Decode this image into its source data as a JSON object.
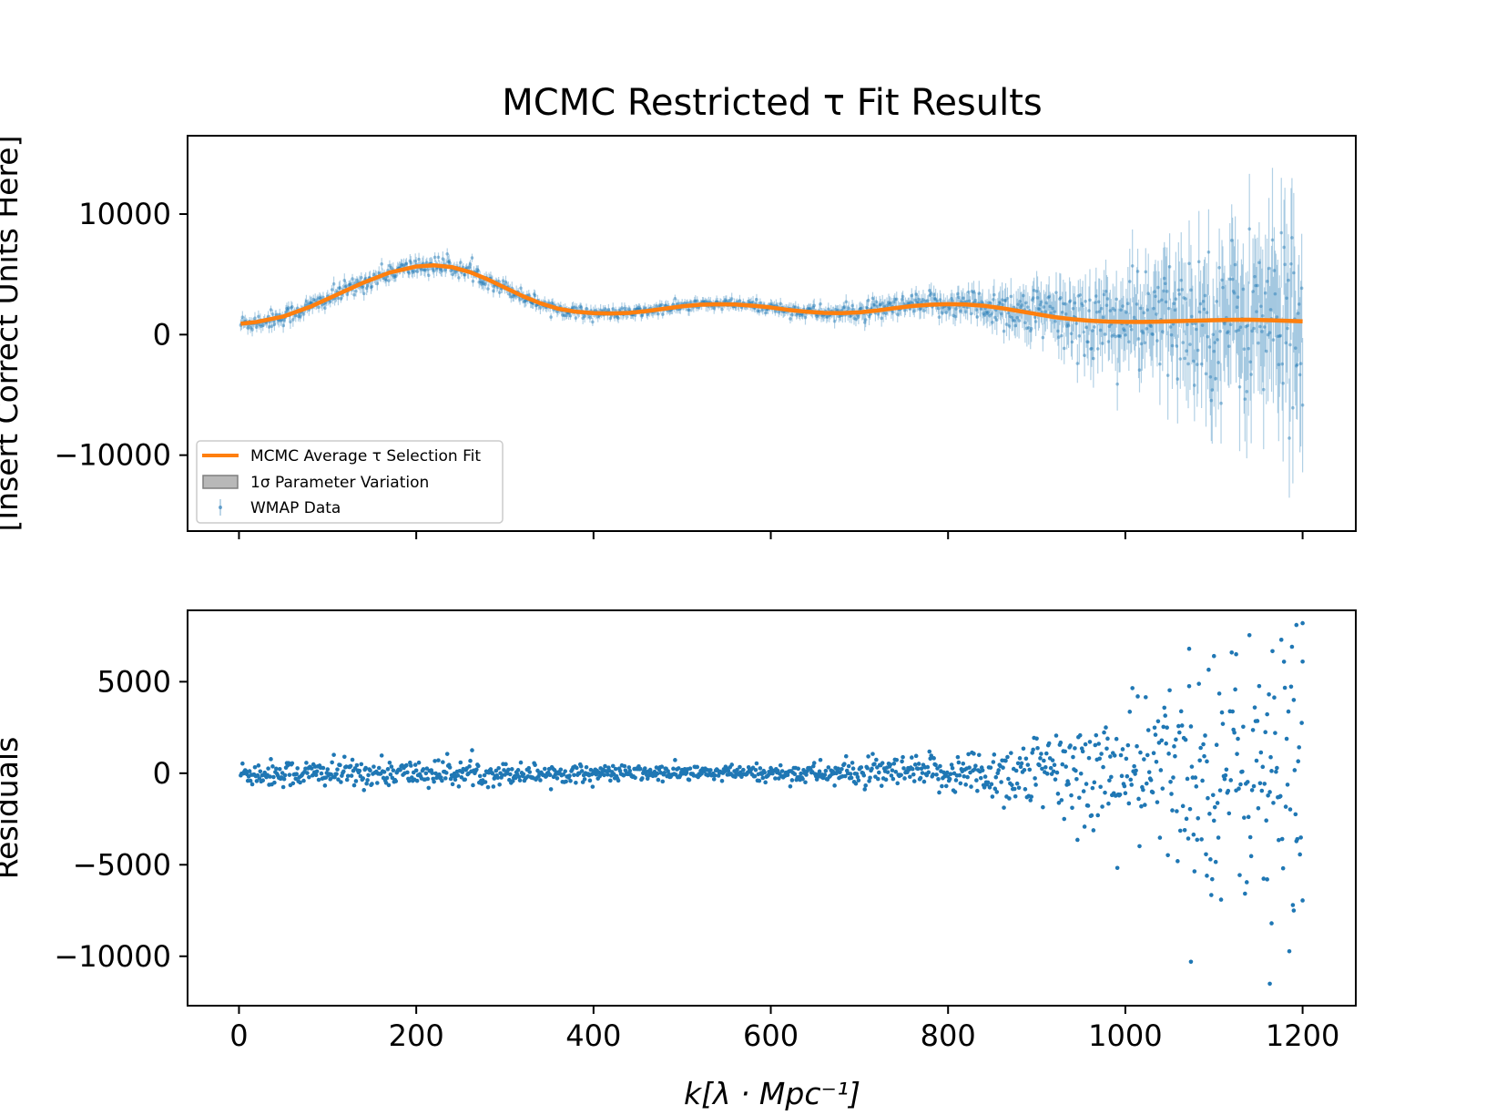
{
  "chart_data": [
    {
      "type": "scatter",
      "title": "MCMC Restricted τ Fit Results",
      "ylabel": "[Insert Correct Units Here]",
      "xlim": [
        -58,
        1260
      ],
      "ylim": [
        -16300,
        16500
      ],
      "xticks": [
        0,
        200,
        400,
        600,
        800,
        1000,
        1200
      ],
      "yticks": [
        -10000,
        0,
        10000
      ],
      "ytick_labels": [
        "−10000",
        "0",
        "10000"
      ],
      "legend": {
        "placement": "lower-left",
        "entries": [
          "MCMC Average τ Selection Fit",
          "1σ Parameter Variation",
          "WMAP Data"
        ]
      },
      "series": [
        {
          "name": "MCMC Average τ Selection Fit",
          "kind": "line",
          "color": "#ff7f0e",
          "x": [
            2,
            20,
            50,
            80,
            110,
            140,
            170,
            200,
            220,
            240,
            260,
            280,
            300,
            320,
            340,
            360,
            380,
            400,
            420,
            440,
            460,
            480,
            500,
            520,
            540,
            560,
            580,
            600,
            620,
            640,
            660,
            680,
            700,
            720,
            740,
            760,
            780,
            800,
            820,
            840,
            860,
            880,
            900,
            920,
            940,
            960,
            980,
            1000,
            1020,
            1040,
            1060,
            1080,
            1100,
            1120,
            1140,
            1160,
            1180,
            1200
          ],
          "y": [
            900,
            1050,
            1500,
            2300,
            3300,
            4300,
            5150,
            5650,
            5750,
            5600,
            5200,
            4600,
            3900,
            3200,
            2600,
            2150,
            1900,
            1780,
            1750,
            1800,
            1950,
            2150,
            2350,
            2480,
            2520,
            2500,
            2400,
            2250,
            2050,
            1900,
            1800,
            1780,
            1850,
            2000,
            2200,
            2380,
            2480,
            2530,
            2500,
            2400,
            2200,
            1950,
            1700,
            1450,
            1280,
            1150,
            1080,
            1050,
            1050,
            1080,
            1120,
            1160,
            1200,
            1220,
            1230,
            1200,
            1150,
            1100
          ]
        },
        {
          "name": "1σ Parameter Variation",
          "kind": "band",
          "color": "#b0b0b0"
        },
        {
          "name": "WMAP Data",
          "kind": "errorbar",
          "color": "#1f77b4",
          "x_range": [
            2,
            1200
          ],
          "approx_points": 1199,
          "error_envelope": {
            "x": [
              0,
              200,
              400,
              600,
              800,
              900,
              1000,
              1100,
              1200
            ],
            "sigma": [
              450,
              500,
              400,
              400,
              700,
              1400,
              2400,
              3600,
              5500
            ]
          }
        }
      ]
    },
    {
      "type": "scatter",
      "xlabel": "k[λ · Mpc⁻¹]",
      "ylabel": "Residuals",
      "xlim": [
        -58,
        1260
      ],
      "ylim": [
        -12700,
        8900
      ],
      "xticks": [
        0,
        200,
        400,
        600,
        800,
        1000,
        1200
      ],
      "xtick_labels": [
        "0",
        "200",
        "400",
        "600",
        "800",
        "1000",
        "1200"
      ],
      "yticks": [
        -10000,
        -5000,
        0,
        5000
      ],
      "ytick_labels": [
        "−10000",
        "−5000",
        "0",
        "5000"
      ],
      "series": [
        {
          "name": "Residuals",
          "kind": "scatter",
          "color": "#1f77b4",
          "x_range": [
            2,
            1200
          ],
          "approx_points": 1199,
          "spread_envelope": {
            "x": [
              0,
              200,
              400,
              600,
              800,
              900,
              1000,
              1100,
              1200
            ],
            "sigma": [
              380,
              380,
              220,
              220,
              520,
              1100,
              1900,
              3000,
              4300
            ]
          },
          "notable_points": [
            {
              "x": 1072,
              "y": 6800
            },
            {
              "x": 1100,
              "y": 6400
            },
            {
              "x": 1125,
              "y": 6500
            },
            {
              "x": 1193,
              "y": 8100
            },
            {
              "x": 1200,
              "y": 8200
            },
            {
              "x": 1200,
              "y": 6100
            },
            {
              "x": 1074,
              "y": -10300
            },
            {
              "x": 1163,
              "y": -11500
            },
            {
              "x": 1165,
              "y": -8200
            },
            {
              "x": 1190,
              "y": -7500
            },
            {
              "x": 1092,
              "y": -5600
            },
            {
              "x": 1160,
              "y": -5800
            }
          ]
        }
      ]
    }
  ]
}
